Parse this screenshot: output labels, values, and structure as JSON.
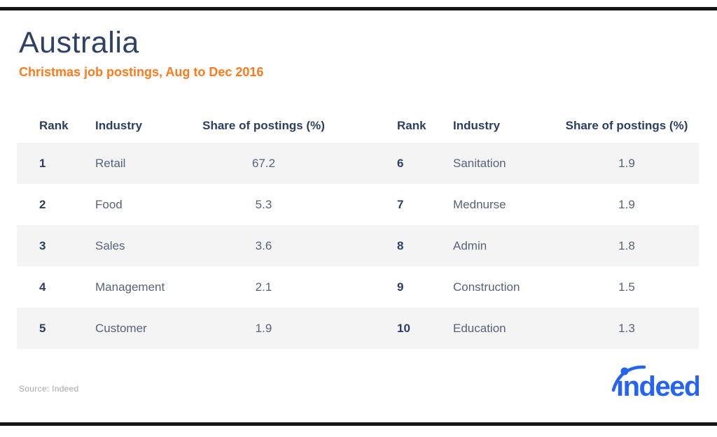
{
  "page": {
    "title": "Australia",
    "subtitle": "Christmas job postings, Aug to Dec 2016",
    "source_note": "Source: Indeed"
  },
  "table": {
    "columns": [
      "Rank",
      "Industry",
      "Share of postings (%)"
    ],
    "left_rows": [
      {
        "rank": "1",
        "industry": "Retail",
        "share": "67.2"
      },
      {
        "rank": "2",
        "industry": "Food",
        "share": "5.3"
      },
      {
        "rank": "3",
        "industry": "Sales",
        "share": "3.6"
      },
      {
        "rank": "4",
        "industry": "Management",
        "share": "2.1"
      },
      {
        "rank": "5",
        "industry": "Customer",
        "share": "1.9"
      }
    ],
    "right_rows": [
      {
        "rank": "6",
        "industry": "Sanitation",
        "share": "1.9"
      },
      {
        "rank": "7",
        "industry": "Mednurse",
        "share": "1.9"
      },
      {
        "rank": "8",
        "industry": "Admin",
        "share": "1.8"
      },
      {
        "rank": "9",
        "industry": "Construction",
        "share": "1.5"
      },
      {
        "rank": "10",
        "industry": "Education",
        "share": "1.3"
      }
    ]
  },
  "logo": {
    "brand": "indeed",
    "display": "ındeed"
  },
  "colors": {
    "title_navy": "#2e4167",
    "accent_orange": "#ff7a1c",
    "header_navy": "#2c3f63",
    "body_text": "#57627a",
    "row_stripe": "#f4f4f5",
    "logo_blue": "#2563f3",
    "frame_bar_black": "#141414",
    "source_gray": "#a9a9a9"
  },
  "chart_data": {
    "type": "table",
    "title": "Australia",
    "subtitle": "Christmas job postings, Aug to Dec 2016",
    "columns": [
      "Rank",
      "Industry",
      "Share of postings (%)"
    ],
    "rows": [
      [
        1,
        "Retail",
        67.2
      ],
      [
        2,
        "Food",
        5.3
      ],
      [
        3,
        "Sales",
        3.6
      ],
      [
        4,
        "Management",
        2.1
      ],
      [
        5,
        "Customer",
        1.9
      ],
      [
        6,
        "Sanitation",
        1.9
      ],
      [
        7,
        "Mednurse",
        1.9
      ],
      [
        8,
        "Admin",
        1.8
      ],
      [
        9,
        "Construction",
        1.5
      ],
      [
        10,
        "Education",
        1.3
      ]
    ],
    "source": "Source: Indeed",
    "layout": "two side-by-side table halves, ranks 1-5 left and 6-10 right, zebra striped rows"
  }
}
